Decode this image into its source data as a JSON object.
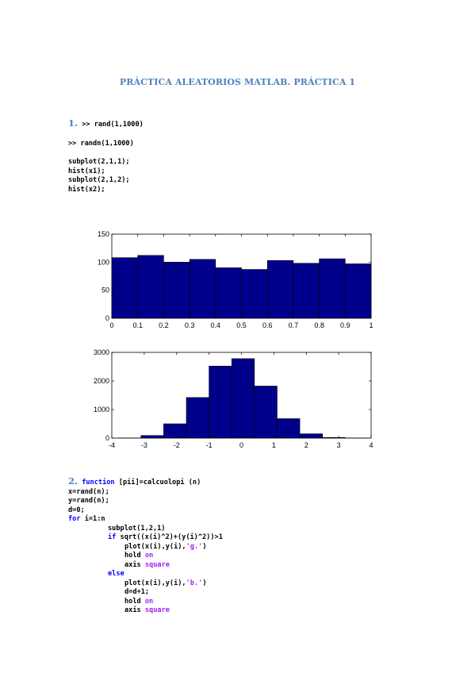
{
  "document": {
    "title": "PRÁCTICA ALEATORIOS MATLAB. PRÁCTICA 1",
    "section1": {
      "number": "1.",
      "line1": " >> rand(1,1000)",
      "line2": ">> randn(1,1000)",
      "code": [
        "subplot(2,1,1);",
        "hist(x1);",
        "subplot(2,1,2);",
        "hist(x2);"
      ]
    },
    "section2": {
      "number": "2.",
      "header_kw": "function",
      "header_rest": " [pii]=calcuolopi (n)",
      "lines": [
        "x=rand(n);",
        "y=rand(n);",
        "d=0;"
      ],
      "for_kw": "for",
      "for_rest": " i=1:n",
      "subplot": "subplot(1,2,1)",
      "if_kw": "if",
      "if_rest": " sqrt((x(i)^2)+(y(i)^2))>1",
      "plot_g_pre": "plot(x(i),y(i),",
      "plot_g_str": "'g.'",
      "plot_g_post": ")",
      "hold": "hold ",
      "on": "on",
      "axis": "axis ",
      "square": "square",
      "else_kw": "else",
      "plot_b_pre": "plot(x(i),y(i),",
      "plot_b_str": "'b.'",
      "plot_b_post": ")",
      "dinc": "d=d+1;"
    }
  },
  "chart_data": [
    {
      "type": "bar",
      "bar_color": "#00008b",
      "bin_edges": [
        0,
        0.1,
        0.2,
        0.3,
        0.4,
        0.5,
        0.6,
        0.7,
        0.8,
        0.9,
        1.0
      ],
      "values": [
        108,
        112,
        100,
        105,
        90,
        87,
        103,
        98,
        106,
        97
      ],
      "xlim": [
        0,
        1
      ],
      "ylim": [
        0,
        150
      ],
      "xticks": [
        "0",
        "0.1",
        "0.2",
        "0.3",
        "0.4",
        "0.5",
        "0.6",
        "0.7",
        "0.8",
        "0.9",
        "1"
      ],
      "yticks": [
        "0",
        "50",
        "100",
        "150"
      ],
      "title": "",
      "xlabel": "",
      "ylabel": ""
    },
    {
      "type": "bar",
      "bar_color": "#00008b",
      "bin_edges": [
        -3.8,
        -3.1,
        -2.4,
        -1.7,
        -1.0,
        -0.3,
        0.4,
        1.1,
        1.8,
        2.5,
        3.2,
        3.9
      ],
      "values": [
        3,
        90,
        500,
        1420,
        2520,
        2780,
        1820,
        680,
        150,
        20,
        2
      ],
      "xlim": [
        -4,
        4
      ],
      "ylim": [
        0,
        3000
      ],
      "xticks": [
        "-4",
        "-3",
        "-2",
        "-1",
        "0",
        "1",
        "2",
        "3",
        "4"
      ],
      "yticks": [
        "0",
        "1000",
        "2000",
        "3000"
      ],
      "title": "",
      "xlabel": "",
      "ylabel": ""
    }
  ]
}
